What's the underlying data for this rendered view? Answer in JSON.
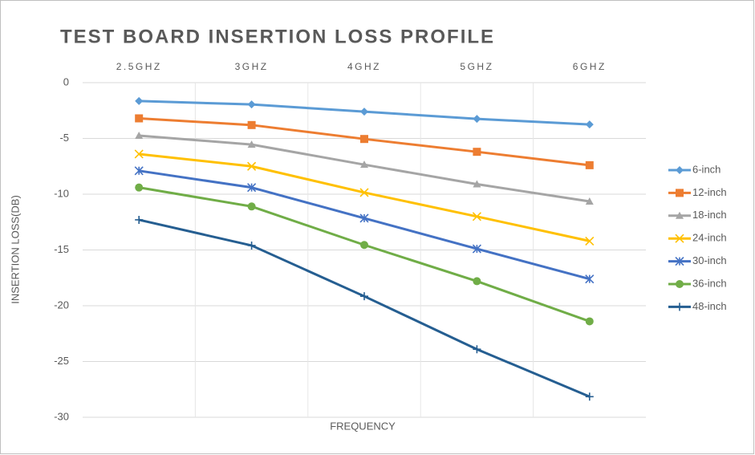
{
  "chart_data": {
    "type": "line",
    "title": "TEST BOARD INSERTION LOSS PROFILE",
    "x_label": "FREQUENCY",
    "y_label": "INSERTION LOSS(DB)",
    "categories": [
      "2.5GHZ",
      "3GHZ",
      "4GHZ",
      "5GHZ",
      "6GHZ"
    ],
    "ylim": [
      -30,
      0
    ],
    "yticks": [
      0,
      -5,
      -10,
      -15,
      -20,
      -25,
      -30
    ],
    "grid": true,
    "legend": "right",
    "series": [
      {
        "name": "6-inch",
        "color": "#5b9bd5",
        "marker": "diamond",
        "values": [
          -1.65,
          -1.95,
          -2.6,
          -3.25,
          -3.75
        ]
      },
      {
        "name": "12-inch",
        "color": "#ed7d31",
        "marker": "square",
        "values": [
          -3.2,
          -3.8,
          -5.05,
          -6.2,
          -7.4
        ]
      },
      {
        "name": "18-inch",
        "color": "#a5a5a5",
        "marker": "triangle",
        "values": [
          -4.75,
          -5.55,
          -7.35,
          -9.1,
          -10.65
        ]
      },
      {
        "name": "24-inch",
        "color": "#ffc000",
        "marker": "x",
        "values": [
          -6.4,
          -7.5,
          -9.85,
          -12.0,
          -14.2
        ]
      },
      {
        "name": "30-inch",
        "color": "#4472c4",
        "marker": "star",
        "values": [
          -7.9,
          -9.4,
          -12.15,
          -14.9,
          -17.6
        ]
      },
      {
        "name": "36-inch",
        "color": "#70ad47",
        "marker": "circle",
        "values": [
          -9.4,
          -11.1,
          -14.55,
          -17.8,
          -21.4
        ]
      },
      {
        "name": "48-inch",
        "color": "#255e91",
        "marker": "plus",
        "values": [
          -12.3,
          -14.6,
          -19.15,
          -23.9,
          -28.15
        ]
      }
    ]
  }
}
